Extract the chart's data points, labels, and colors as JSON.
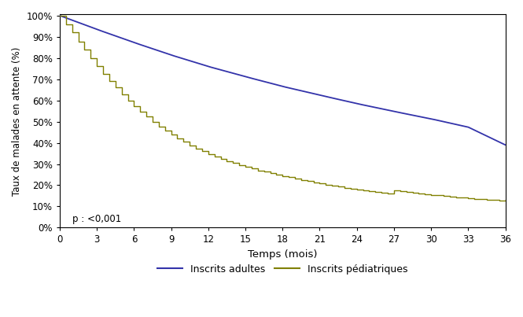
{
  "xlabel": "Temps (mois)",
  "ylabel": "Taux de malades en attente (%)",
  "xlim": [
    0,
    36
  ],
  "ylim": [
    0,
    1.005
  ],
  "xticks": [
    0,
    3,
    6,
    9,
    12,
    15,
    18,
    21,
    24,
    27,
    30,
    33,
    36
  ],
  "yticks": [
    0.0,
    0.1,
    0.2,
    0.3,
    0.4,
    0.5,
    0.6,
    0.7,
    0.8,
    0.9,
    1.0
  ],
  "ytick_labels": [
    "0%",
    "10%",
    "20%",
    "30%",
    "40%",
    "50%",
    "60%",
    "70%",
    "80%",
    "90%",
    "100%"
  ],
  "adult_color": "#3333AA",
  "ped_color": "#808000",
  "annotation": "p : <0,001",
  "legend_adult": "Inscrits adultes",
  "legend_ped": "Inscrits pédiatriques",
  "adult_x": [
    0,
    3,
    6,
    9,
    12,
    15,
    18,
    21,
    24,
    27,
    30,
    33,
    36
  ],
  "adult_y": [
    1.0,
    0.935,
    0.873,
    0.814,
    0.76,
    0.712,
    0.666,
    0.625,
    0.585,
    0.548,
    0.513,
    0.474,
    0.39
  ],
  "ped_x": [
    0,
    0.5,
    1.0,
    1.5,
    2.0,
    2.5,
    3.0,
    3.5,
    4.0,
    4.5,
    5.0,
    5.5,
    6.0,
    6.5,
    7.0,
    7.5,
    8.0,
    8.5,
    9.0,
    9.5,
    10.0,
    10.5,
    11.0,
    11.5,
    12.0,
    12.5,
    13.0,
    13.5,
    14.0,
    14.5,
    15.0,
    15.5,
    16.0,
    16.5,
    17.0,
    17.5,
    18.0,
    18.5,
    19.0,
    19.5,
    20.0,
    20.5,
    21.0,
    21.5,
    22.0,
    22.5,
    23.0,
    23.5,
    24.0,
    24.5,
    25.0,
    25.5,
    26.0,
    26.5,
    27.0,
    27.5,
    28.0,
    28.5,
    29.0,
    29.5,
    30.0,
    30.5,
    31.0,
    31.5,
    32.0,
    32.5,
    33.0,
    33.5,
    34.0,
    34.5,
    35.0,
    35.5,
    36.0
  ],
  "ped_y": [
    1.0,
    0.96,
    0.92,
    0.878,
    0.84,
    0.8,
    0.762,
    0.726,
    0.692,
    0.66,
    0.63,
    0.6,
    0.572,
    0.548,
    0.524,
    0.5,
    0.478,
    0.458,
    0.44,
    0.422,
    0.404,
    0.388,
    0.374,
    0.36,
    0.346,
    0.335,
    0.324,
    0.314,
    0.304,
    0.295,
    0.286,
    0.278,
    0.27,
    0.263,
    0.256,
    0.249,
    0.243,
    0.237,
    0.231,
    0.225,
    0.219,
    0.213,
    0.208,
    0.203,
    0.198,
    0.193,
    0.188,
    0.184,
    0.18,
    0.176,
    0.172,
    0.168,
    0.164,
    0.161,
    0.175,
    0.172,
    0.169,
    0.165,
    0.162,
    0.158,
    0.155,
    0.152,
    0.15,
    0.147,
    0.144,
    0.141,
    0.138,
    0.136,
    0.134,
    0.131,
    0.13,
    0.127,
    0.13
  ]
}
